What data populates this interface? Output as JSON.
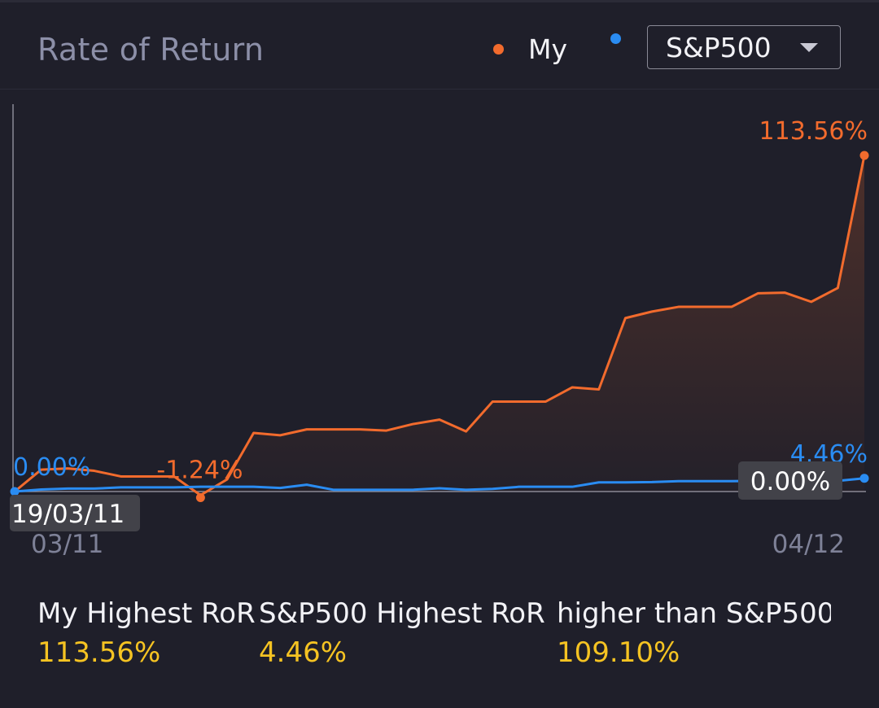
{
  "header": {
    "title": "Rate of Return",
    "legend": [
      {
        "label": "My",
        "color": "#f26b2d"
      },
      {
        "label": "",
        "color": "#2a8cf2"
      }
    ],
    "benchmark_select": {
      "value": "S&P500",
      "icon": "chevron-down-icon"
    }
  },
  "chart_data": {
    "type": "line",
    "x_start_label": "03/11",
    "x_end_label": "04/12",
    "series": [
      {
        "name": "My",
        "color": "#f26b2d",
        "values": [
          0.0,
          7.4,
          7.8,
          7.0,
          5.1,
          5.1,
          5.1,
          -1.24,
          4.1,
          19.8,
          19.0,
          21.0,
          21.0,
          21.0,
          20.6,
          22.8,
          24.3,
          20.3,
          30.4,
          30.4,
          30.4,
          35.2,
          34.5,
          58.6,
          60.8,
          62.4,
          62.4,
          62.4,
          67.0,
          67.2,
          64.1,
          68.8,
          113.56
        ]
      },
      {
        "name": "S&P500",
        "color": "#2a8cf2",
        "values": [
          0.0,
          0.7,
          1.0,
          1.0,
          1.4,
          1.4,
          1.4,
          1.6,
          1.6,
          1.6,
          1.2,
          2.3,
          0.6,
          0.6,
          0.6,
          0.6,
          1.1,
          0.6,
          0.9,
          1.6,
          1.6,
          1.6,
          3.1,
          3.1,
          3.2,
          3.5,
          3.5,
          3.5,
          3.6,
          3.6,
          3.6,
          3.6,
          4.46
        ]
      }
    ],
    "annotations": [
      {
        "series": "S&P500",
        "index": 0,
        "text": "0.00%"
      },
      {
        "series": "My",
        "index": 7,
        "text": "-1.24%"
      },
      {
        "series": "My",
        "index": 32,
        "text": "113.56%"
      },
      {
        "series": "S&P500",
        "index": 32,
        "text": "4.46%"
      }
    ],
    "start_tag": "19/03/11",
    "end_tag": "0.00%",
    "ylim": [
      -2,
      120
    ]
  },
  "stats": [
    {
      "label": "My Highest RoR",
      "value": "113.56%"
    },
    {
      "label": "S&P500 Highest RoR",
      "value": "4.46%"
    },
    {
      "label": "higher than S&P500",
      "value": "109.10%"
    }
  ]
}
